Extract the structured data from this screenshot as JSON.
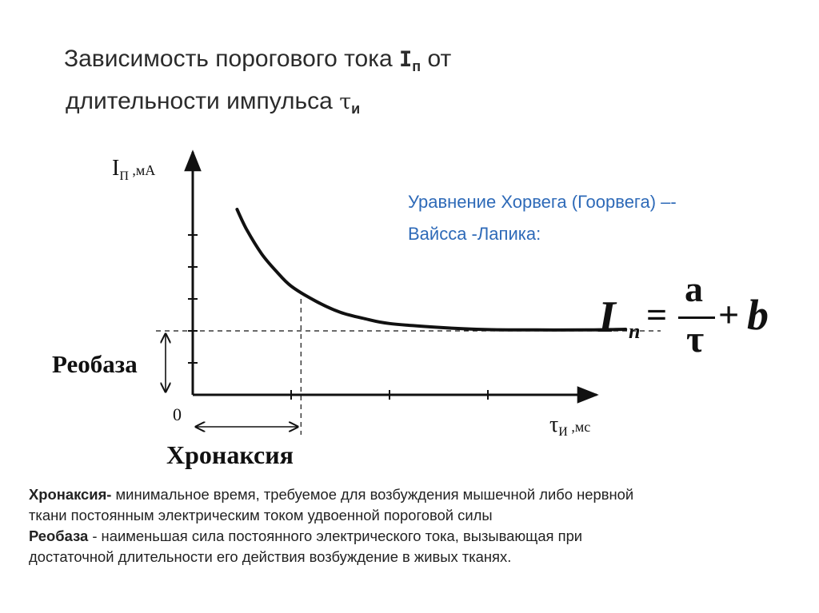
{
  "slide": {
    "title_line1": "Зависимость порогового тока ",
    "title_symbol": "I",
    "title_symbol_sub": "п",
    "title_after_symbol": " от",
    "title_line2": "длительности импульса ",
    "title_tau": "τ",
    "title_tau_sub": "и"
  },
  "equation": {
    "heading_line1": "Уравнение Хорвега (Гоорвега) –-",
    "heading_line2": "Вайсса -Лапика:",
    "color": "#2e6ab8",
    "lhs": "I",
    "lhs_sub": "п",
    "equals": "=",
    "numerator": "a",
    "denominator": "τ",
    "plus": "+",
    "b": "b"
  },
  "chart_data": {
    "type": "line",
    "title": "",
    "ylabel": "I",
    "ylabel_sub": "П",
    "ylabel_unit": " ,мА",
    "xlabel": "τ",
    "xlabel_sub": "И",
    "xlabel_unit": " ,мс",
    "origin_label": "0",
    "xlim": [
      0,
      10
    ],
    "ylim": [
      0,
      6
    ],
    "x_ticks": [
      2,
      4,
      6,
      8
    ],
    "y_ticks": [
      1,
      2,
      3,
      4,
      5
    ],
    "series": [
      {
        "x": [
          0.9,
          1.1,
          1.4,
          1.7,
          2.0,
          2.5,
          3.0,
          3.5,
          4.0,
          5.0,
          6.0,
          7.0,
          8.0,
          8.8
        ],
        "values": [
          5.8,
          5.16,
          4.41,
          3.86,
          3.4,
          2.93,
          2.58,
          2.38,
          2.23,
          2.11,
          2.04,
          2.03,
          2.03,
          2.05
        ]
      }
    ],
    "rheobase": 2.0,
    "chronaxie": 2.2,
    "chronaxie_current": 3.0,
    "rheobase_label": "Реобаза",
    "chronaxie_label": "Хронаксия"
  },
  "definitions": [
    {
      "term": "Хронаксия-",
      "text_line1": " минимальное время, требуемое для возбуждения мышечной либо нервной",
      "text_line2": "ткани постоянным электрическим током удвоенной пороговой силы"
    },
    {
      "term": "Реобаза",
      "text_line1": " - наименьшая сила постоянного электрического тока, вызывающая при",
      "text_line2": "достаточной длительности его действия возбуждение в живых тканях."
    }
  ]
}
